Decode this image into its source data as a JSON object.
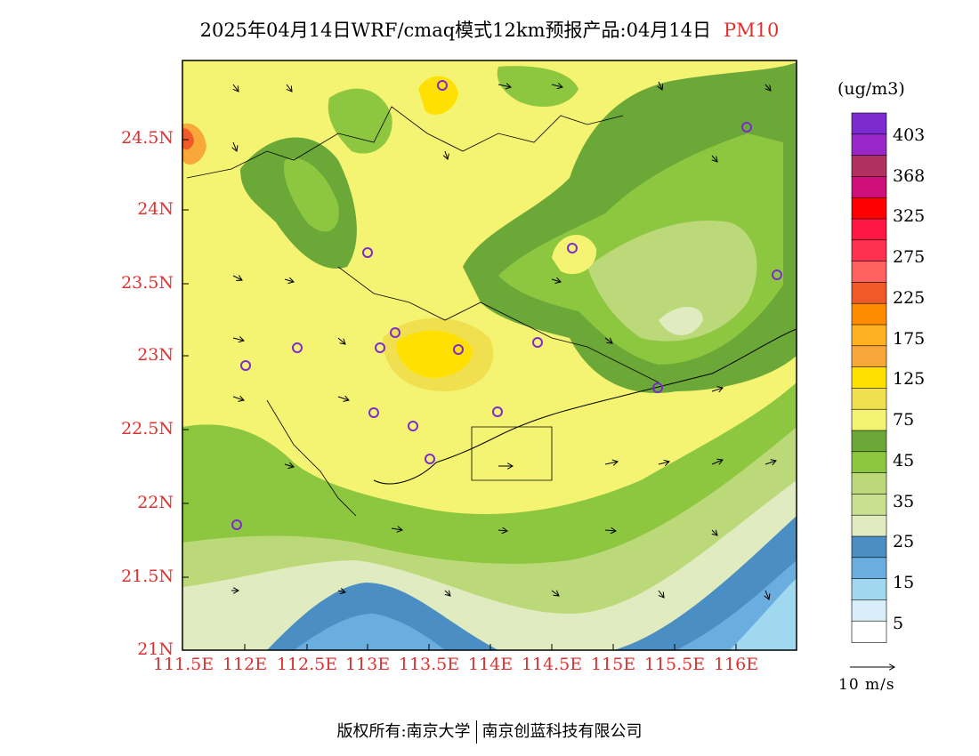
{
  "title": {
    "text": "2025年04月14日WRF/cmaq模式12km预报产品:04月14日",
    "variable": "PM10"
  },
  "axes": {
    "lat_labels": [
      "24.5N",
      "24N",
      "23.5N",
      "23N",
      "22.5N",
      "22N",
      "21.5N",
      "21N"
    ],
    "lon_labels": [
      "111.5E",
      "112E",
      "112.5E",
      "113E",
      "113.5E",
      "114E",
      "114.5E",
      "115E",
      "115.5E",
      "116E"
    ]
  },
  "colorbar": {
    "units": "(ug/m3)",
    "labels": [
      "403",
      "368",
      "325",
      "275",
      "225",
      "175",
      "125",
      "75",
      "45",
      "35",
      "25",
      "15",
      "5"
    ],
    "colors": [
      "#7b2bd0",
      "#9a28c8",
      "#b0305e",
      "#d0107a",
      "#ff0000",
      "#ff1744",
      "#ff3050",
      "#ff6060",
      "#f05a28",
      "#ff8c00",
      "#ffb020",
      "#f7a838",
      "#ffe000",
      "#f0e050",
      "#f4f472",
      "#6ba838",
      "#8dc63f",
      "#bcd97a",
      "#c8e090",
      "#e0ebc0",
      "#4a8ec4",
      "#6aaee0",
      "#a0d8f0",
      "#d8eef8",
      "#ffffff"
    ]
  },
  "wind_reference": "10 m/s",
  "copyright": {
    "left": "版权所有:南京大学",
    "right": "南京创蓝科技有限公司"
  }
}
